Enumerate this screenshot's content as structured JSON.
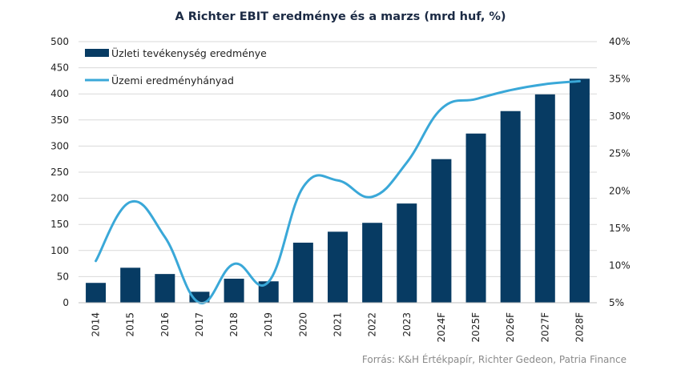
{
  "chart_data": {
    "type": "bar",
    "title": "A Richter EBIT eredménye és a marzs (mrd huf, %)",
    "categories": [
      "2014",
      "2015",
      "2016",
      "2017",
      "2018",
      "2019",
      "2020",
      "2021",
      "2022",
      "2023",
      "2024F",
      "2025F",
      "2026F",
      "2027F",
      "2028F"
    ],
    "series": [
      {
        "name": "Üzleti tevékenység eredménye",
        "type": "bar",
        "axis": "left",
        "color": "#073b63",
        "values": [
          38,
          67,
          55,
          21,
          46,
          41,
          115,
          136,
          153,
          190,
          275,
          324,
          367,
          399,
          429
        ]
      },
      {
        "name": "Üzemi eredményhányad",
        "type": "line",
        "axis": "right",
        "color": "#3aa8d8",
        "values": [
          10.6,
          18.5,
          13.8,
          5.0,
          10.2,
          7.8,
          20.5,
          21.4,
          19.2,
          23.8,
          31.0,
          32.3,
          33.5,
          34.3,
          34.7
        ]
      }
    ],
    "y_left": {
      "min": 0,
      "max": 500,
      "step": 50,
      "ticks": [
        "0",
        "50",
        "100",
        "150",
        "200",
        "250",
        "300",
        "350",
        "400",
        "450",
        "500"
      ]
    },
    "y_right": {
      "min": 5,
      "max": 40,
      "step": 5,
      "ticks": [
        "5%",
        "10%",
        "15%",
        "20%",
        "25%",
        "30%",
        "35%",
        "40%"
      ]
    },
    "grid": true,
    "legend_position": "top-left",
    "source": "Forrás: K&H Értékpapír, Richter Gedeon, Patria Finance"
  }
}
